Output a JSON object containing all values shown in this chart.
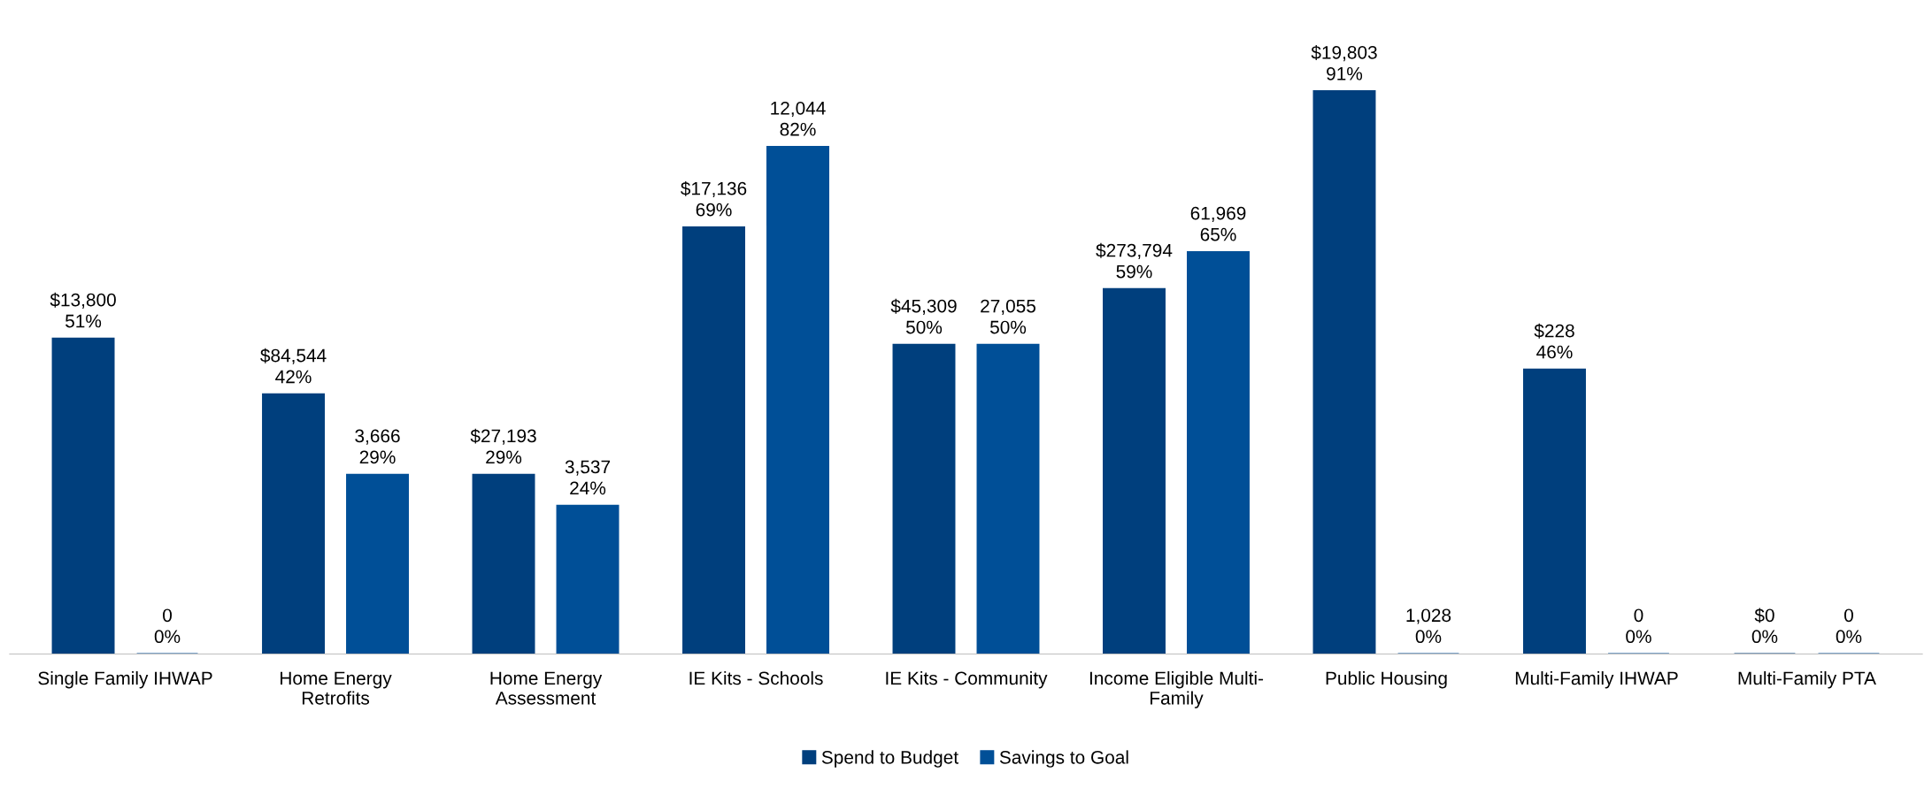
{
  "chart_data": {
    "type": "bar",
    "categories": [
      "Single Family IHWAP",
      "Home Energy\nRetrofits",
      "Home Energy\nAssessment",
      "IE Kits - Schools",
      "IE Kits - Community",
      "Income Eligible Multi-\nFamily",
      "Public Housing",
      "Multi-Family IHWAP",
      "Multi-Family PTA"
    ],
    "series": [
      {
        "name": "Spend to Budget",
        "color": "#003f7d",
        "values": [
          51,
          42,
          29,
          69,
          50,
          59,
          91,
          46,
          0
        ],
        "value_labels": [
          "$13,800\n51%",
          "$84,544\n42%",
          "$27,193\n29%",
          "$17,136\n69%",
          "$45,309\n50%",
          "$273,794\n59%",
          "$19,803\n91%",
          "$228\n46%",
          "$0\n0%"
        ]
      },
      {
        "name": "Savings to Goal",
        "color": "#004f97",
        "values": [
          0,
          29,
          24,
          82,
          50,
          65,
          0,
          0,
          0
        ],
        "value_labels": [
          "0\n0%",
          "3,666\n29%",
          "3,537\n24%",
          "12,044\n82%",
          "27,055\n50%",
          "61,969\n65%",
          "1,028\n0%",
          "0\n0%",
          "0\n0%"
        ]
      }
    ],
    "legend": "bottom",
    "grid": false
  }
}
